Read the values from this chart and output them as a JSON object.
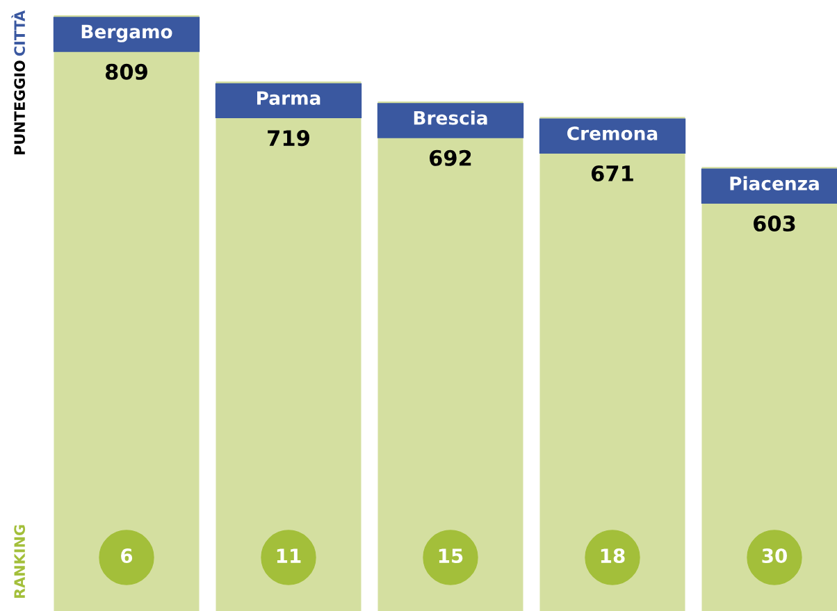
{
  "chart_data": {
    "type": "bar",
    "categories": [
      "Bergamo",
      "Parma",
      "Brescia",
      "Cremona",
      "Piacenza"
    ],
    "values": [
      809,
      719,
      692,
      671,
      603
    ],
    "color": "#d4dfa0",
    "data_labels": true,
    "relative": false,
    "tick_labels": false,
    "annotations": [
      "CITTÀ",
      "PUNTEGGIO",
      "RANKING",
      "6",
      "11",
      "15",
      "18",
      "30"
    ]
  }
}
